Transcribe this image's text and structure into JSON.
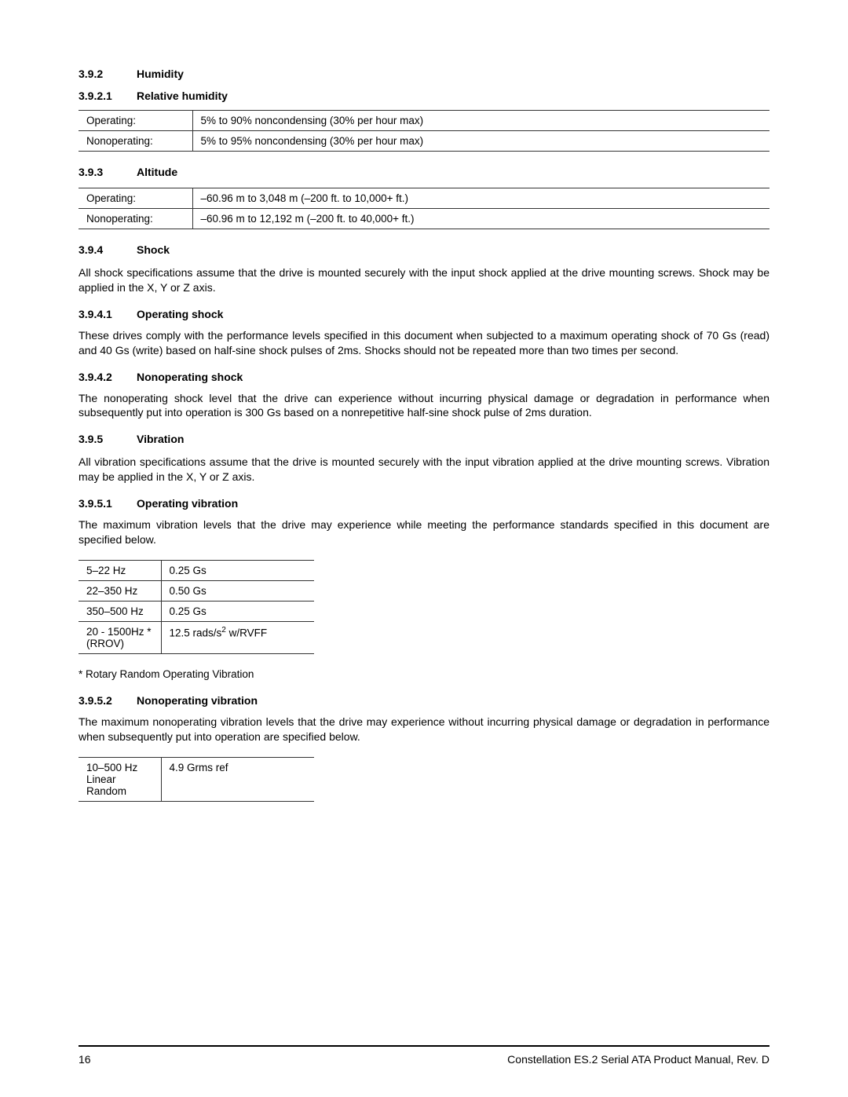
{
  "s392": {
    "num": "3.9.2",
    "title": "Humidity"
  },
  "s3921": {
    "num": "3.9.2.1",
    "title": "Relative humidity"
  },
  "humidity_table": {
    "r0c0": "Operating:",
    "r0c1": "5% to 90% noncondensing (30% per hour max)",
    "r1c0": "Nonoperating:",
    "r1c1": "5% to 95% noncondensing (30% per hour max)"
  },
  "s393": {
    "num": "3.9.3",
    "title": "Altitude"
  },
  "altitude_table": {
    "r0c0": "Operating:",
    "r0c1": "–60.96 m to 3,048 m (–200 ft. to 10,000+ ft.)",
    "r1c0": "Nonoperating:",
    "r1c1": "–60.96 m to 12,192 m (–200 ft. to 40,000+ ft.)"
  },
  "s394": {
    "num": "3.9.4",
    "title": "Shock"
  },
  "shock_intro": "All shock specifications assume that the drive is mounted securely with the input shock applied at the drive mounting screws. Shock may be applied in the X, Y or Z axis.",
  "s3941": {
    "num": "3.9.4.1",
    "title": "Operating shock"
  },
  "op_shock_text": "These drives comply with the performance levels specified in this document when subjected to a maximum operating shock of 70 Gs (read) and 40 Gs (write) based on half-sine shock pulses of 2ms. Shocks should not be repeated more than two times per second.",
  "s3942": {
    "num": "3.9.4.2",
    "title": "Nonoperating shock"
  },
  "nonop_shock_text": "The nonoperating shock level that the drive can experience without incurring physical damage or degradation in performance when subsequently put into operation is 300 Gs based on a nonrepetitive half-sine shock pulse of 2ms duration.",
  "s395": {
    "num": "3.9.5",
    "title": "Vibration"
  },
  "vibration_intro": "All vibration specifications assume that the drive is mounted securely with the input vibration applied at the drive mounting screws. Vibration may be applied in the X, Y or Z axis.",
  "s3951": {
    "num": "3.9.5.1",
    "title": "Operating vibration"
  },
  "op_vib_text": "The maximum vibration levels that the drive may experience while meeting the performance standards specified in this document are specified below.",
  "op_vib_table": {
    "r0c0": "5–22 Hz",
    "r0c1": "0.25 Gs",
    "r1c0": "22–350 Hz",
    "r1c1": "0.50 Gs",
    "r2c0": "350–500 Hz",
    "r2c1": "0.25 Gs",
    "r3c0": "20 - 1500Hz *(RROV)",
    "r3c1_pre": "12.5 rads/s",
    "r3c1_sup": "2",
    "r3c1_post": "  w/RVFF"
  },
  "op_vib_footnote": "* Rotary Random Operating Vibration",
  "s3952": {
    "num": "3.9.5.2",
    "title": "Nonoperating vibration"
  },
  "nonop_vib_text": "The maximum nonoperating vibration levels that the drive may experience without incurring physical damage or degradation in performance when subsequently put into operation are specified below.",
  "nonop_vib_table": {
    "r0c0": "10–500 Hz Linear Random",
    "r0c1": "4.9 Grms ref"
  },
  "footer": {
    "page": "16",
    "doc": "Constellation ES.2 Serial ATA Product Manual, Rev. D"
  }
}
